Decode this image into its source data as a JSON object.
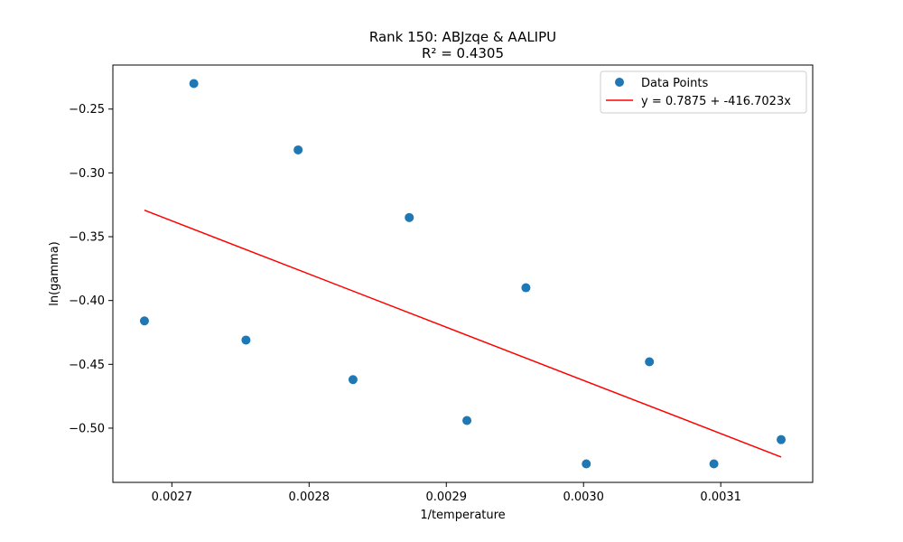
{
  "chart_data": {
    "type": "scatter",
    "title": "Rank 150: ABJzqe & AALIPU",
    "subtitle": "R² = 0.4305",
    "xlabel": "1/temperature",
    "ylabel": "ln(gamma)",
    "xlim": [
      0.002657,
      0.003167
    ],
    "ylim": [
      -0.5425,
      -0.2155
    ],
    "grid": false,
    "legend_position": "top-right",
    "xticks": [
      {
        "value": 0.0027,
        "label": "0.0027"
      },
      {
        "value": 0.0028,
        "label": "0.0028"
      },
      {
        "value": 0.0029,
        "label": "0.0029"
      },
      {
        "value": 0.003,
        "label": "0.0030"
      },
      {
        "value": 0.0031,
        "label": "0.0031"
      }
    ],
    "yticks": [
      {
        "value": -0.25,
        "label": "−0.25"
      },
      {
        "value": -0.3,
        "label": "−0.30"
      },
      {
        "value": -0.35,
        "label": "−0.35"
      },
      {
        "value": -0.4,
        "label": "−0.40"
      },
      {
        "value": -0.45,
        "label": "−0.45"
      },
      {
        "value": -0.5,
        "label": "−0.50"
      }
    ],
    "series": [
      {
        "name": "Data Points",
        "kind": "scatter",
        "color": "#1f77b4",
        "points": [
          {
            "x": 0.00268,
            "y": -0.416
          },
          {
            "x": 0.002716,
            "y": -0.23
          },
          {
            "x": 0.002754,
            "y": -0.431
          },
          {
            "x": 0.002792,
            "y": -0.282
          },
          {
            "x": 0.002832,
            "y": -0.462
          },
          {
            "x": 0.002873,
            "y": -0.335
          },
          {
            "x": 0.002915,
            "y": -0.494
          },
          {
            "x": 0.002958,
            "y": -0.39
          },
          {
            "x": 0.003002,
            "y": -0.528
          },
          {
            "x": 0.003048,
            "y": -0.448
          },
          {
            "x": 0.003095,
            "y": -0.528
          },
          {
            "x": 0.003144,
            "y": -0.509
          }
        ]
      },
      {
        "name": "y = 0.7875 + -416.7023x",
        "kind": "line",
        "color": "#ff0000",
        "intercept": 0.7875,
        "slope": -416.7023,
        "x_range": [
          0.00268,
          0.003144
        ]
      }
    ]
  }
}
